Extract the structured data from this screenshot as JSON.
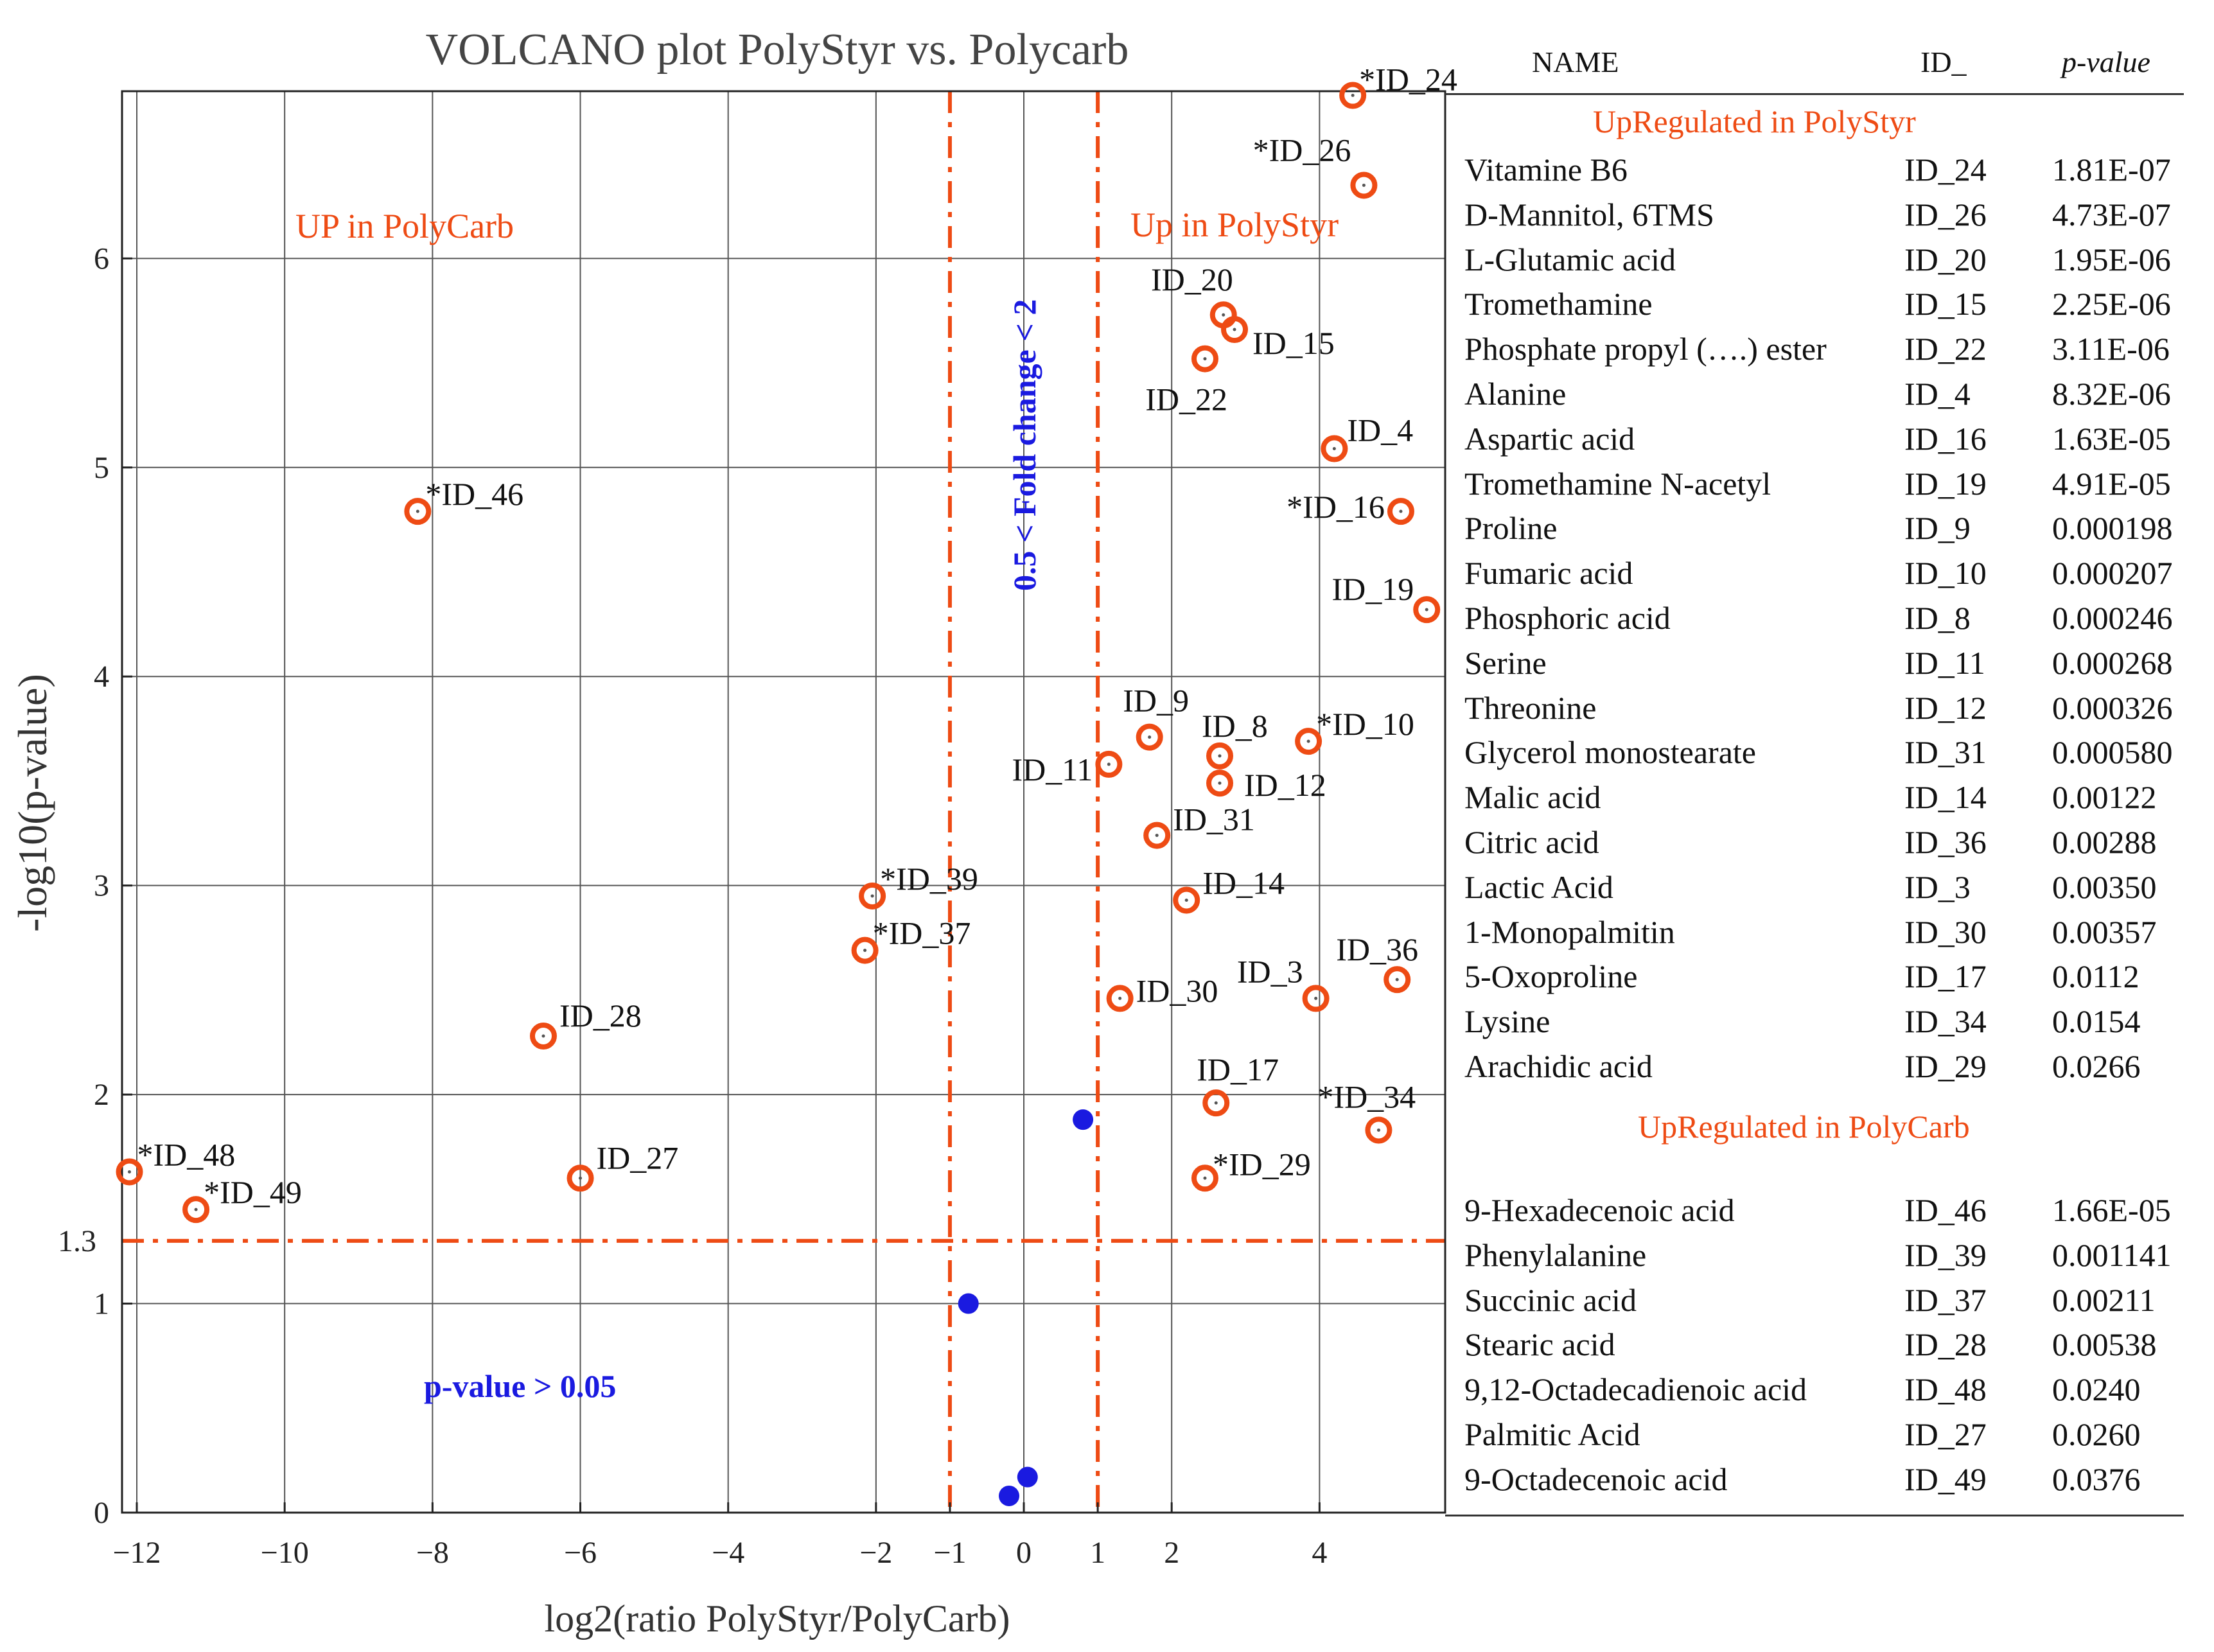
{
  "chart_data": {
    "type": "scatter",
    "title": "VOLCANO plot PolyStyr vs. Polycarb",
    "xlabel": "log2(ratio PolyStyr/PolyCarb)",
    "ylabel": "-log10(p-value)",
    "xlim": [
      -12.2,
      5.7
    ],
    "ylim": [
      0,
      6.8
    ],
    "xticks": [
      -12,
      -10,
      -8,
      -6,
      -4,
      -2,
      -1,
      0,
      1,
      2,
      4
    ],
    "xtick_labels": [
      "−12",
      "−10",
      "−8",
      "−6",
      "−4",
      "−2",
      "−1",
      "0",
      "1",
      "2",
      "4"
    ],
    "xgrid": [
      -12,
      -10,
      -8,
      -6,
      -4,
      -2,
      0,
      2,
      4
    ],
    "yticks": [
      0,
      1,
      2,
      3,
      4,
      5,
      6
    ],
    "ytick_labels": [
      "0",
      "1",
      "2",
      "3",
      "4",
      "5",
      "6"
    ],
    "ythreshold": 1.3,
    "ythreshold_label": "1.3",
    "vthresholds": [
      -1,
      1
    ],
    "region_labels": {
      "left": "UP in PolyCarb",
      "right": "Up in PolyStyr"
    },
    "annotations": {
      "foldchange": "0.5 < Fold change < 2",
      "pvalue": "p-value > 0.05"
    },
    "significant": [
      {
        "label": "*ID_24",
        "x": 4.45,
        "y": 6.78
      },
      {
        "label": "*ID_26",
        "x": 4.6,
        "y": 6.35
      },
      {
        "label": "ID_20",
        "x": 2.7,
        "y": 5.73
      },
      {
        "label": "ID_15",
        "x": 2.85,
        "y": 5.66
      },
      {
        "label": "ID_22",
        "x": 2.45,
        "y": 5.52
      },
      {
        "label": "ID_4",
        "x": 4.2,
        "y": 5.09
      },
      {
        "label": "*ID_16",
        "x": 5.1,
        "y": 4.79
      },
      {
        "label": "ID_19",
        "x": 5.45,
        "y": 4.32
      },
      {
        "label": "ID_9",
        "x": 1.7,
        "y": 3.71
      },
      {
        "label": "ID_8",
        "x": 2.65,
        "y": 3.62
      },
      {
        "label": "*ID_10",
        "x": 3.85,
        "y": 3.69
      },
      {
        "label": "ID_11",
        "x": 1.15,
        "y": 3.58
      },
      {
        "label": "ID_12",
        "x": 2.65,
        "y": 3.49
      },
      {
        "label": "ID_31",
        "x": 1.8,
        "y": 3.24
      },
      {
        "label": "ID_14",
        "x": 2.2,
        "y": 2.93
      },
      {
        "label": "ID_3",
        "x": 3.95,
        "y": 2.46
      },
      {
        "label": "ID_36",
        "x": 5.05,
        "y": 2.55
      },
      {
        "label": "ID_30",
        "x": 1.3,
        "y": 2.46
      },
      {
        "label": "ID_17",
        "x": 2.6,
        "y": 1.96
      },
      {
        "label": "*ID_34",
        "x": 4.8,
        "y": 1.83
      },
      {
        "label": "*ID_29",
        "x": 2.45,
        "y": 1.6
      },
      {
        "label": "*ID_46",
        "x": -8.2,
        "y": 4.79
      },
      {
        "label": "*ID_39",
        "x": -2.05,
        "y": 2.95
      },
      {
        "label": "*ID_37",
        "x": -2.15,
        "y": 2.69
      },
      {
        "label": "ID_28",
        "x": -6.5,
        "y": 2.28
      },
      {
        "label": "ID_27",
        "x": -6.0,
        "y": 1.6
      },
      {
        "label": "*ID_48",
        "x": -12.1,
        "y": 1.63
      },
      {
        "label": "*ID_49",
        "x": -11.2,
        "y": 1.45
      }
    ],
    "nonsignificant": [
      {
        "x": 0.8,
        "y": 1.88
      },
      {
        "x": -0.75,
        "y": 1.0
      },
      {
        "x": 0.05,
        "y": 0.17
      },
      {
        "x": -0.2,
        "y": 0.08
      }
    ],
    "colors": {
      "significant": "#ee4b14",
      "nonsignificant": "#1a1ae0",
      "grid": "#555555",
      "threshold": "#ee4b14"
    }
  },
  "table": {
    "headers": {
      "name": "NAME",
      "id": "ID_",
      "p": "p-value"
    },
    "sections": [
      {
        "title": "UpRegulated in PolyStyr",
        "rows": [
          {
            "name": "Vitamine B6",
            "id": "ID_24",
            "p": "1.81E-07"
          },
          {
            "name": "D-Mannitol, 6TMS",
            "id": "ID_26",
            "p": "4.73E-07"
          },
          {
            "name": "L-Glutamic acid",
            "id": "ID_20",
            "p": "1.95E-06"
          },
          {
            "name": "Tromethamine",
            "id": "ID_15",
            "p": "2.25E-06"
          },
          {
            "name": "Phosphate propyl (….) ester",
            "id": "ID_22",
            "p": "3.11E-06"
          },
          {
            "name": "Alanine",
            "id": "ID_4",
            "p": "8.32E-06"
          },
          {
            "name": "Aspartic acid",
            "id": "ID_16",
            "p": "1.63E-05"
          },
          {
            "name": "Tromethamine N-acetyl",
            "id": "ID_19",
            "p": "4.91E-05"
          },
          {
            "name": "Proline",
            "id": "ID_9",
            "p": "0.000198"
          },
          {
            "name": "Fumaric acid",
            "id": "ID_10",
            "p": "0.000207"
          },
          {
            "name": "Phosphoric acid",
            "id": "ID_8",
            "p": "0.000246"
          },
          {
            "name": "Serine",
            "id": "ID_11",
            "p": "0.000268"
          },
          {
            "name": "Threonine",
            "id": "ID_12",
            "p": "0.000326"
          },
          {
            "name": "Glycerol monostearate",
            "id": "ID_31",
            "p": "0.000580"
          },
          {
            "name": "Malic acid",
            "id": "ID_14",
            "p": "0.00122"
          },
          {
            "name": "Citric acid",
            "id": "ID_36",
            "p": "0.00288"
          },
          {
            "name": "Lactic Acid",
            "id": "ID_3",
            "p": "0.00350"
          },
          {
            "name": "1-Monopalmitin",
            "id": "ID_30",
            "p": "0.00357"
          },
          {
            "name": "5-Oxoproline",
            "id": "ID_17",
            "p": "0.0112"
          },
          {
            "name": "Lysine",
            "id": "ID_34",
            "p": "0.0154"
          },
          {
            "name": "Arachidic acid",
            "id": "ID_29",
            "p": "0.0266"
          }
        ]
      },
      {
        "title": "UpRegulated in PolyCarb",
        "rows": [
          {
            "name": "9-Hexadecenoic acid",
            "id": "ID_46",
            "p": "1.66E-05"
          },
          {
            "name": "Phenylalanine",
            "id": "ID_39",
            "p": "0.001141"
          },
          {
            "name": "Succinic acid",
            "id": "ID_37",
            "p": "0.00211"
          },
          {
            "name": "Stearic acid",
            "id": "ID_28",
            "p": "0.00538"
          },
          {
            "name": "9,12-Octadecadienoic acid",
            "id": "ID_48",
            "p": "0.0240"
          },
          {
            "name": "Palmitic Acid",
            "id": "ID_27",
            "p": "0.0260"
          },
          {
            "name": "9-Octadecenoic acid",
            "id": "ID_49",
            "p": "0.0376"
          }
        ]
      }
    ]
  }
}
